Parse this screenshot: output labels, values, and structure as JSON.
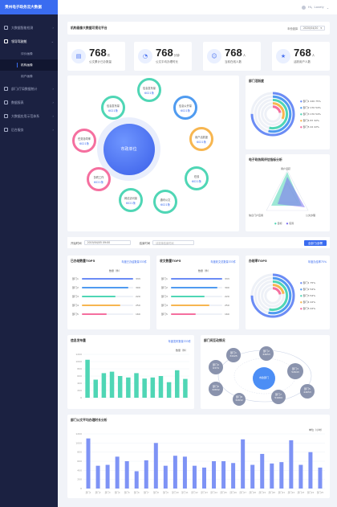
{
  "brand": "贵州电子政务云大数据",
  "sidebar": {
    "items": [
      {
        "label": "大数据智能检测"
      },
      {
        "label": "领导驾驶舱"
      },
      {
        "label": "部门/厅局数据统计"
      },
      {
        "label": "数据报表"
      },
      {
        "label": "大数据应用示范体系"
      },
      {
        "label": "后台服务"
      }
    ],
    "sub": [
      {
        "label": "评价画像"
      },
      {
        "label": "机构画像"
      },
      {
        "label": "用户画像"
      }
    ]
  },
  "topbar": {
    "user": "Hi，Lovely"
  },
  "page": {
    "title": "机构画像大数据可视化平台",
    "date_label": "年份选择",
    "date_value": "2020/04/20"
  },
  "stats": [
    {
      "num": "768",
      "unit": "件",
      "label": "公文累计已办数量"
    },
    {
      "num": "768",
      "unit": "分钟",
      "label": "公文平均办理时长"
    },
    {
      "num": "768",
      "unit": "人",
      "label": "当前在线人数"
    },
    {
      "num": "768",
      "unit": "人",
      "label": "活跃用户人数"
    }
  ],
  "center": {
    "label": "市政单位"
  },
  "nodes": [
    {
      "name": "信息发布量",
      "value": "6021条"
    },
    {
      "name": "信息发布量",
      "value": "6021条"
    },
    {
      "name": "信息公开量",
      "value": "6021条"
    },
    {
      "name": "在线",
      "value": "6021条"
    },
    {
      "name": "通讯公文",
      "value": "6021条"
    },
    {
      "name": "网站访问量",
      "value": "6021条"
    },
    {
      "name": "协同工作",
      "value": "6021条"
    },
    {
      "name": "任务协同率",
      "value": "6021条"
    },
    {
      "name": "用户活跃度",
      "value": "6021条"
    }
  ],
  "activity": {
    "title": "部门活跃度",
    "legend": [
      {
        "name": "部门1",
        "value": "220",
        "pct": "75%"
      },
      {
        "name": "部门2",
        "value": "170",
        "pct": "54%"
      },
      {
        "name": "部门3",
        "value": "170",
        "pct": "54%"
      },
      {
        "name": "部门4",
        "value": "87",
        "pct": "32%"
      },
      {
        "name": "部门5",
        "value": "22",
        "pct": "22%"
      }
    ]
  },
  "radar": {
    "title": "电子政务网评估指标分析",
    "labels": [
      "用户活跃",
      "公文办理",
      "信息门户应用"
    ],
    "legend": [
      "目标",
      "实际"
    ]
  },
  "filter": {
    "start_label": "开始时间",
    "start_value": "2019/04/05 09:00",
    "end_label": "结束时间",
    "end_placeholder": "请选择结束时间",
    "button": "全部门/部署"
  },
  "top5a": {
    "title": "已办结数量TOP5",
    "link": "年度已办结数量333件",
    "header": "数量（件）",
    "items": [
      {
        "name": "部门1",
        "value": "333"
      },
      {
        "name": "部门2",
        "value": "300"
      },
      {
        "name": "部门3",
        "value": "220"
      },
      {
        "name": "部门4",
        "value": "250"
      },
      {
        "name": "部门5",
        "value": "160"
      }
    ]
  },
  "top5b": {
    "title": "收文数量TOP5",
    "link": "年度收文总数量333件",
    "header": "数量（件）",
    "items": [
      {
        "name": "部门1",
        "value": "333"
      },
      {
        "name": "部门2",
        "value": "300"
      },
      {
        "name": "部门3",
        "value": "220"
      },
      {
        "name": "部门4",
        "value": "250"
      },
      {
        "name": "部门5",
        "value": "160"
      }
    ]
  },
  "office": {
    "title": "办结率TOP5",
    "link": "年度办结率75%",
    "legend": [
      {
        "name": "部门1",
        "pct": "75%"
      },
      {
        "name": "部门2",
        "pct": "54%"
      },
      {
        "name": "部门3",
        "pct": "54%"
      },
      {
        "name": "部门4",
        "pct": "22%"
      },
      {
        "name": "部门5",
        "pct": "22%"
      }
    ]
  },
  "infopub": {
    "title": "信息发布量",
    "link": "年度发布数量333件",
    "unit": "数量（件）"
  },
  "links": {
    "title": "部门间互动情况",
    "center": "市政部门",
    "bubbles": [
      {
        "name": "部门1",
        "value": "34425"
      },
      {
        "name": "部门2",
        "value": "44653"
      },
      {
        "name": "部门3",
        "value": "52643"
      },
      {
        "name": "部门4",
        "value": "34425"
      },
      {
        "name": "部门5",
        "value": "44653"
      },
      {
        "name": "部门6",
        "value": "32832"
      },
      {
        "name": "部门7",
        "value": "51664"
      },
      {
        "name": "部门8",
        "value": "32832"
      },
      {
        "name": "部门9",
        "value": "6374"
      }
    ]
  },
  "docavg": {
    "title": "部门公文平均办理时长分析",
    "unit": "单位（小时）"
  },
  "colors": {
    "accent": "#3a6cf0",
    "teal": "#4fd6b5",
    "orange": "#f7b650",
    "pink": "#f56f9f",
    "green": "#7cd958",
    "sidebar": "#1b2141"
  },
  "chart_data": [
    {
      "type": "bar",
      "title": "已办结数量TOP5",
      "categories": [
        "部门1",
        "部门2",
        "部门3",
        "部门4",
        "部门5"
      ],
      "values": [
        333,
        300,
        220,
        250,
        160
      ]
    },
    {
      "type": "bar",
      "title": "收文数量TOP5",
      "categories": [
        "部门1",
        "部门2",
        "部门3",
        "部门4",
        "部门5"
      ],
      "values": [
        333,
        300,
        220,
        250,
        160
      ]
    },
    {
      "type": "bar",
      "title": "信息发布量",
      "ylabel": "数量（件）",
      "ylim": [
        0,
        1200
      ],
      "yticks": [
        0,
        200,
        400,
        600,
        800,
        1000,
        1200
      ],
      "categories": [
        "部门1",
        "部门2",
        "部门3",
        "部门4",
        "部门5",
        "部门6",
        "部门7",
        "部门8",
        "部门9",
        "部门10",
        "部门11",
        "部门12",
        "部门13"
      ],
      "values": [
        1050,
        500,
        680,
        720,
        600,
        560,
        680,
        530,
        560,
        600,
        430,
        760,
        520
      ]
    },
    {
      "type": "bar",
      "title": "部门公文平均办理时长分析",
      "ylabel": "单位（小时）",
      "ylim": [
        0,
        1200
      ],
      "yticks": [
        0,
        200,
        400,
        600,
        800,
        1000,
        1200
      ],
      "categories": [
        "部门1",
        "部门2",
        "部门3",
        "部门4",
        "部门5",
        "部门6",
        "部门7",
        "部门8",
        "部门9",
        "部门10",
        "部门11",
        "部门12",
        "部门13",
        "部门14",
        "部门15",
        "部门16",
        "部门17",
        "部门18",
        "部门19",
        "部门20",
        "部门21",
        "部门22",
        "部门23",
        "部门24",
        "部门25"
      ],
      "values": [
        1100,
        500,
        520,
        700,
        600,
        380,
        620,
        1000,
        500,
        720,
        700,
        500,
        460,
        600,
        600,
        560,
        1080,
        520,
        760,
        550,
        580,
        1060,
        520,
        800,
        460
      ]
    }
  ]
}
